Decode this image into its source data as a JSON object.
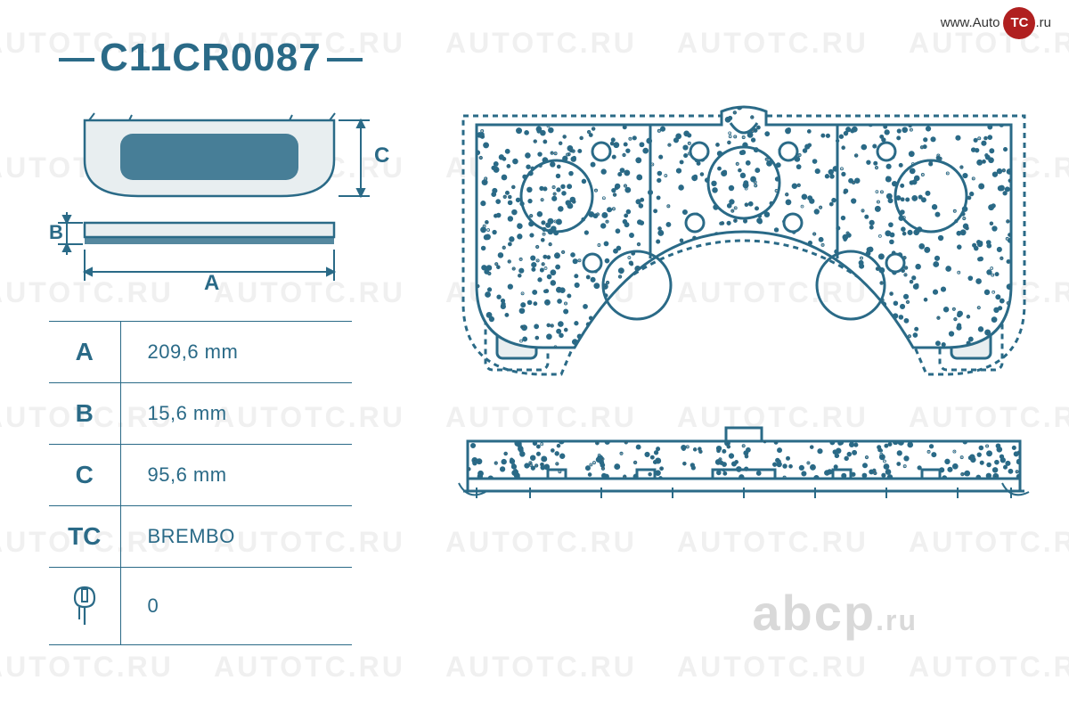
{
  "product_code": "C11CR0087",
  "colors": {
    "primary": "#2a6a87",
    "title": "#2a6a87",
    "table_border": "#2a6a87",
    "watermark": "#f0f0f0",
    "abcp": "#d9d9d9",
    "logo_red": "#b02020",
    "drawing_fill": "#e8eef0",
    "drawing_stroke": "#2a6a87",
    "speckle": "#454545"
  },
  "specs": [
    {
      "key": "A",
      "value": "209,6 mm"
    },
    {
      "key": "B",
      "value": "15,6 mm"
    },
    {
      "key": "C",
      "value": "95,6 mm"
    },
    {
      "key": "TC",
      "value": "BREMBO"
    },
    {
      "key": "sensor",
      "value": "0"
    }
  ],
  "watermark_text": "AUTOTC.RU",
  "top_logo": {
    "prefix": "www.Auto",
    "badge": "TC",
    "suffix": ".ru"
  },
  "bottom_logo": {
    "text": "abcp",
    "suffix": ".ru"
  },
  "left_schematic": {
    "labels": {
      "A": "A",
      "B": "B",
      "C": "C"
    }
  }
}
